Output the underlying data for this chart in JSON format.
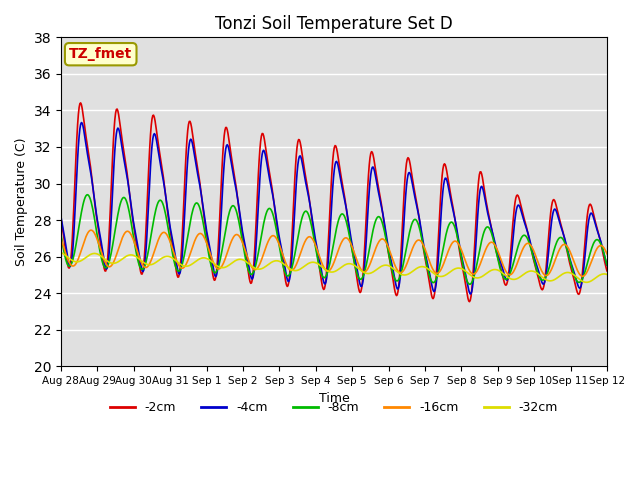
{
  "title": "Tonzi Soil Temperature Set D",
  "xlabel": "Time",
  "ylabel": "Soil Temperature (C)",
  "ylim": [
    20,
    38
  ],
  "yticks": [
    20,
    22,
    24,
    26,
    28,
    30,
    32,
    34,
    36,
    38
  ],
  "annotation_text": "TZ_fmet",
  "annotation_color": "#cc0000",
  "annotation_bg": "#ffffcc",
  "annotation_border": "#999900",
  "bg_color": "#e0e0e0",
  "legend_entries": [
    "-2cm",
    "-4cm",
    "-8cm",
    "-16cm",
    "-32cm"
  ],
  "line_colors": [
    "#dd0000",
    "#0000cc",
    "#00bb00",
    "#ff8800",
    "#dddd00"
  ],
  "tick_labels": [
    "Aug 28",
    "Aug 29",
    "Aug 30",
    "Aug 31",
    "Sep 1",
    "Sep 2",
    "Sep 3",
    "Sep 4",
    "Sep 5",
    "Sep 6",
    "Sep 7",
    "Sep 8",
    "Sep 9",
    "Sep 10",
    "Sep 11",
    "Sep 12"
  ]
}
